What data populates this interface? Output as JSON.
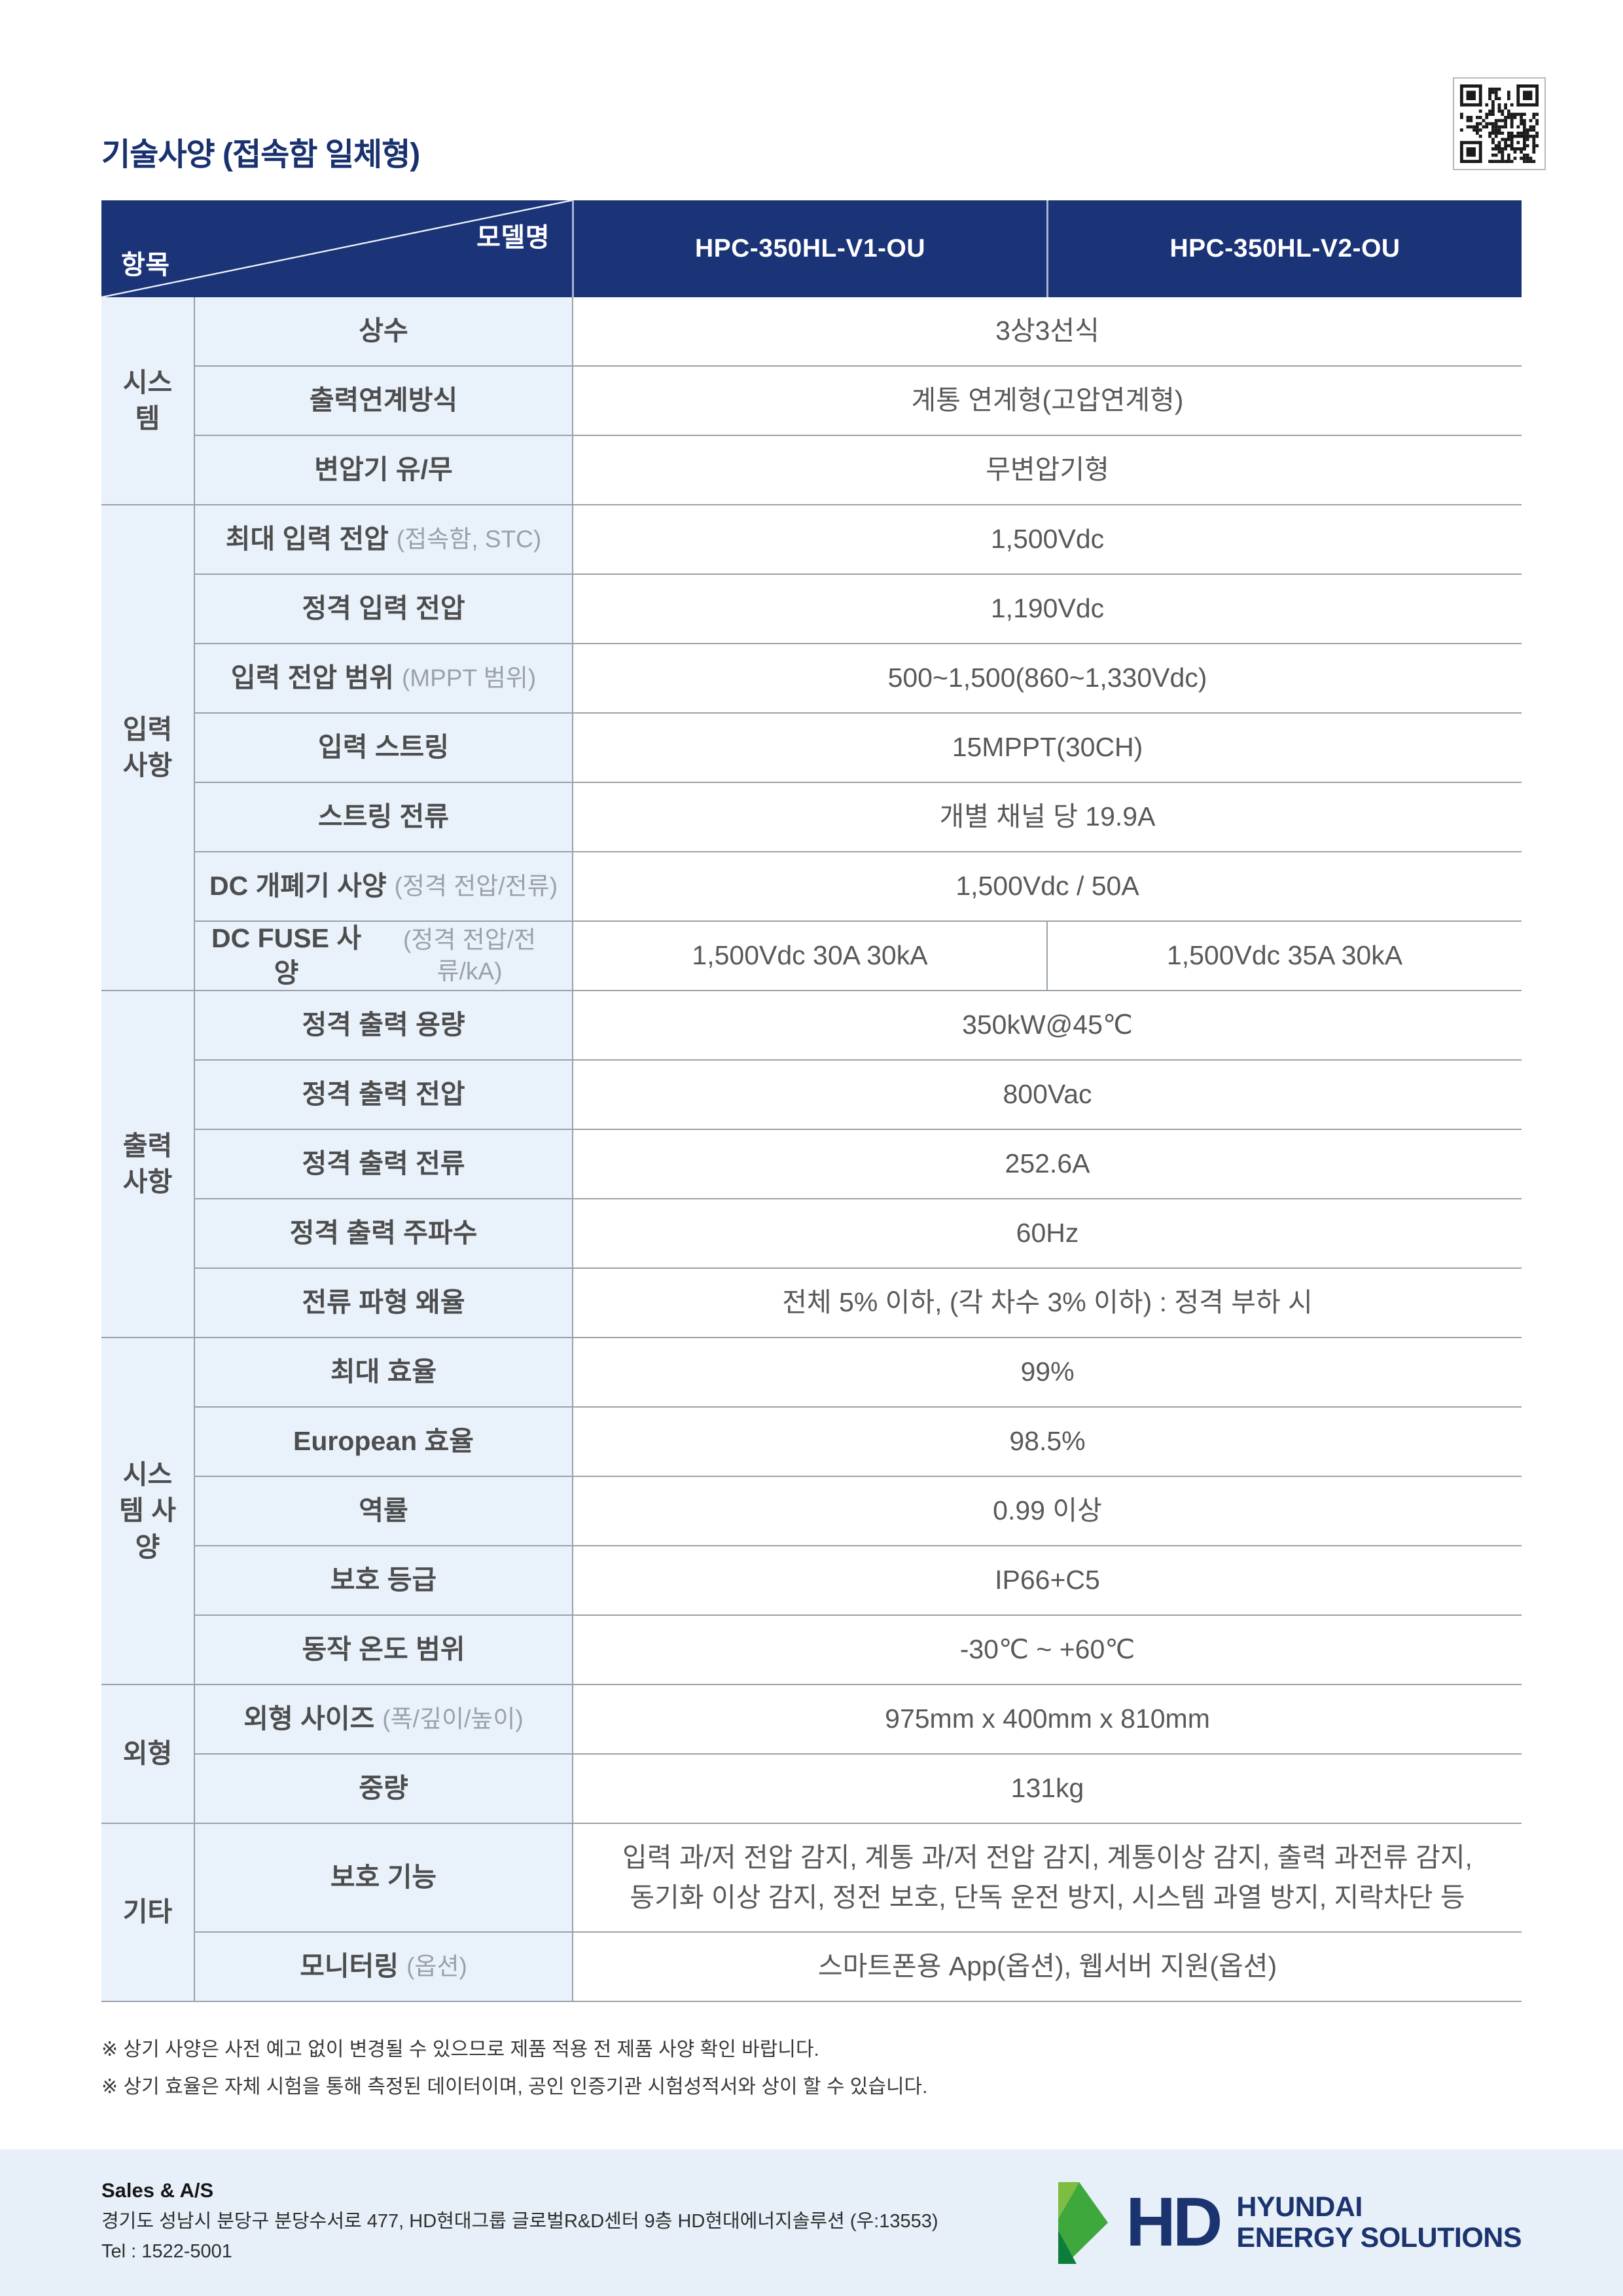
{
  "page": {
    "title": "기술사양 (접속함 일체형)"
  },
  "colors": {
    "header_navy": "#1b3377",
    "cell_blue": "#e9f2fb",
    "footer_blue": "#e7f0f8",
    "border_gray": "#99a1a8",
    "logo_navy": "#1b3470",
    "logo_green_light": "#7cbd42",
    "logo_green_mid": "#3fa83d",
    "logo_green_dark": "#0e7c3a"
  },
  "table": {
    "corner": {
      "model_label": "모델명",
      "item_label": "항목"
    },
    "models": [
      "HPC-350HL-V1-OU",
      "HPC-350HL-V2-OU"
    ],
    "sections": [
      {
        "category": "시스템",
        "rows": [
          {
            "label": "상수",
            "value": "3상3선식"
          },
          {
            "label": "출력연계방식",
            "value": "계통 연계형(고압연계형)"
          },
          {
            "label": "변압기 유/무",
            "value": "무변압기형"
          }
        ]
      },
      {
        "category": "입력 사항",
        "rows": [
          {
            "label": "최대 입력 전압",
            "label_note": "(접속함, STC)",
            "value": "1,500Vdc"
          },
          {
            "label": "정격 입력 전압",
            "value": "1,190Vdc"
          },
          {
            "label": "입력 전압 범위",
            "label_note": "(MPPT 범위)",
            "value": "500~1,500(860~1,330Vdc)"
          },
          {
            "label": "입력 스트링",
            "value": "15MPPT(30CH)"
          },
          {
            "label": "스트링 전류",
            "value": "개별 채널 당 19.9A"
          },
          {
            "label": "DC 개폐기 사양",
            "label_note": "(정격 전압/전류)",
            "value": "1,500Vdc / 50A"
          },
          {
            "label": "DC FUSE 사양",
            "label_note": "(정격 전압/전류/kA)",
            "values": [
              "1,500Vdc 30A 30kA",
              "1,500Vdc 35A 30kA"
            ]
          }
        ]
      },
      {
        "category": "출력 사항",
        "rows": [
          {
            "label": "정격 출력 용량",
            "value": "350kW@45℃"
          },
          {
            "label": "정격 출력 전압",
            "value": "800Vac"
          },
          {
            "label": "정격 출력 전류",
            "value": "252.6A"
          },
          {
            "label": "정격 출력 주파수",
            "value": "60Hz"
          },
          {
            "label": "전류 파형 왜율",
            "value": "전체 5% 이하, (각 차수 3% 이하) : 정격 부하 시"
          }
        ]
      },
      {
        "category": "시스템 사양",
        "rows": [
          {
            "label": "최대 효율",
            "value": "99%"
          },
          {
            "label": "European 효율",
            "value": "98.5%"
          },
          {
            "label": "역률",
            "value": "0.99 이상"
          },
          {
            "label": "보호 등급",
            "value": "IP66+C5"
          },
          {
            "label": "동작 온도 범위",
            "value": "-30℃ ~ +60℃"
          }
        ]
      },
      {
        "category": "외형",
        "rows": [
          {
            "label": "외형 사이즈",
            "label_note": "(폭/깊이/높이)",
            "value": "975mm x 400mm x 810mm"
          },
          {
            "label": "중량",
            "value": "131kg"
          }
        ]
      },
      {
        "category": "기타",
        "rows": [
          {
            "label": "보호 기능",
            "value": "입력 과/저 전압 감지, 계통 과/저 전압 감지, 계통이상 감지, 출력 과전류 감지,\n동기화 이상 감지, 정전 보호, 단독 운전 방지, 시스템 과열 방지, 지락차단 등"
          },
          {
            "label": "모니터링",
            "label_note": "(옵션)",
            "value": "스마트폰용 App(옵션), 웹서버 지원(옵션)"
          }
        ]
      }
    ]
  },
  "notes": [
    "※ 상기 사양은 사전 예고 없이 변경될 수 있으므로 제품 적용 전 제품 사양 확인 바랍니다.",
    "※ 상기 효율은 자체 시험을 통해 측정된 데이터이며, 공인 인증기관 시험성적서와 상이 할 수 있습니다."
  ],
  "footer": {
    "sales_title": "Sales & A/S",
    "address": "경기도 성남시 분당구 분당수서로 477, HD현대그룹 글로벌R&D센터 9층 HD현대에너지솔루션 (우:13553)",
    "tel": "Tel : 1522-5001",
    "logo": {
      "hd": "HD",
      "line1": "HYUNDAI",
      "line2": "ENERGY SOLUTIONS"
    }
  }
}
